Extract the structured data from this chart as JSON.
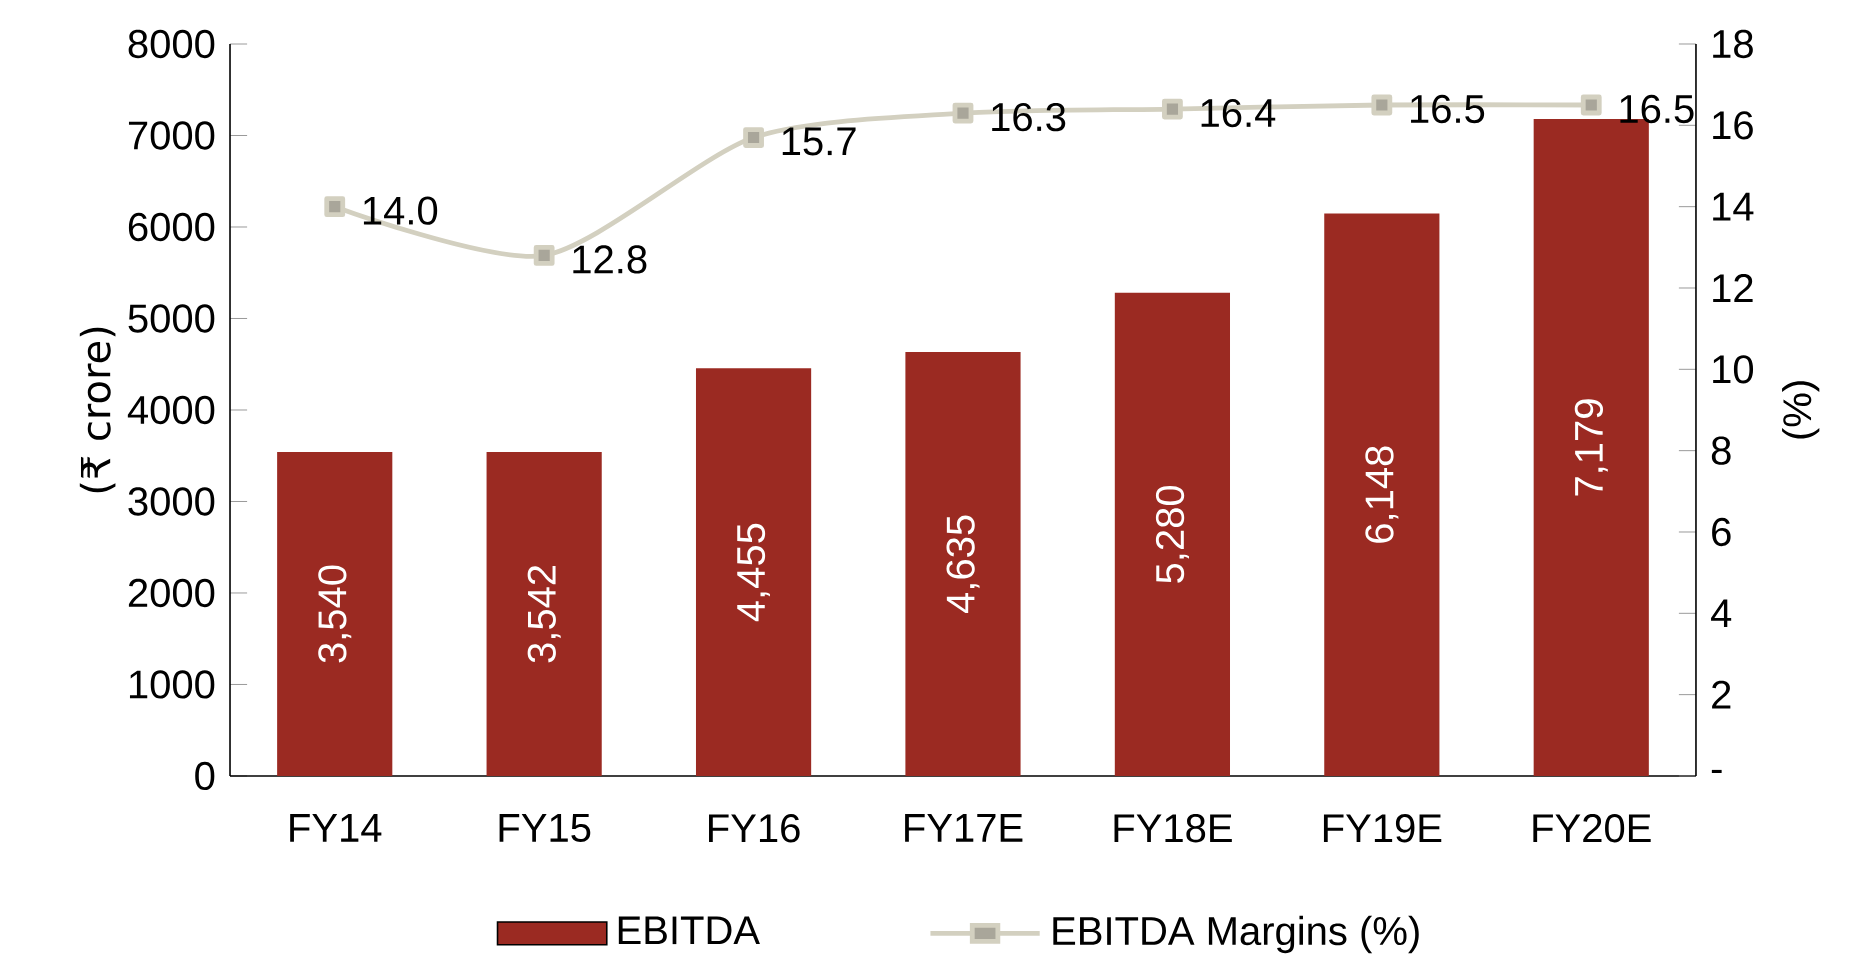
{
  "chart_data": {
    "type": "bar",
    "categories": [
      "FY14",
      "FY15",
      "FY16",
      "FY17E",
      "FY18E",
      "FY19E",
      "FY20E"
    ],
    "series": [
      {
        "name": "EBITDA",
        "color": "#9b2a22",
        "values": [
          3540,
          3542,
          4455,
          4635,
          5280,
          6148,
          7179
        ],
        "value_labels": [
          "3,540",
          "3,542",
          "4,455",
          "4,635",
          "5,280",
          "6,148",
          "7,179"
        ]
      },
      {
        "name": "EBITDA Margins (%)",
        "type": "line",
        "axis": "y2",
        "color": "#d3d0c0",
        "marker": "square",
        "values": [
          14.0,
          12.8,
          15.7,
          16.3,
          16.4,
          16.5,
          16.5
        ],
        "value_labels": [
          "14.0",
          "12.8",
          "15.7",
          "16.3",
          "16.4",
          "16.5",
          "16.5"
        ]
      }
    ],
    "ylabel": "(₹ crore)",
    "y2label": "(%)",
    "ylim": [
      0,
      8000
    ],
    "yticks": [
      0,
      1000,
      2000,
      3000,
      4000,
      5000,
      6000,
      7000,
      8000
    ],
    "y2lim": [
      0,
      18
    ],
    "y2ticks": [
      {
        "value": 0,
        "label": "-"
      },
      2,
      4,
      6,
      8,
      10,
      12,
      14,
      16,
      18
    ],
    "legend": "bottom"
  }
}
